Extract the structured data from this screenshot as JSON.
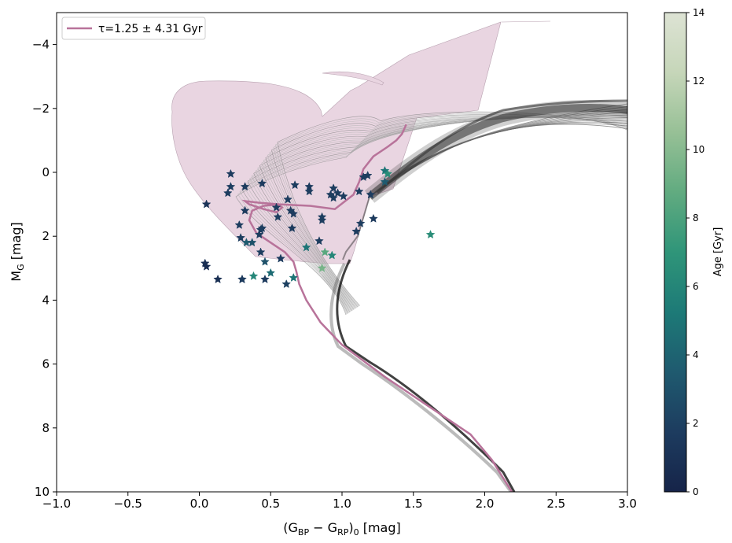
{
  "chart_data": {
    "type": "scatter",
    "xlabel_main": "(G",
    "xlabel_sub1": "BP",
    "xlabel_mid": " − G",
    "xlabel_sub2": "RP",
    "xlabel_close": ")",
    "xlabel_sub3": "0",
    "xlabel_unit": " [mag]",
    "ylabel_main": "M",
    "ylabel_sub": "G",
    "ylabel_unit": " [mag]",
    "xlim": [
      -1.0,
      3.0
    ],
    "ylim": [
      10,
      -5
    ],
    "xticks": [
      -1.0,
      -0.5,
      0.0,
      0.5,
      1.0,
      1.5,
      2.0,
      2.5,
      3.0
    ],
    "xtick_labels": [
      "−1.0",
      "−0.5",
      "0.0",
      "0.5",
      "1.0",
      "1.5",
      "2.0",
      "2.5",
      "3.0"
    ],
    "yticks": [
      -4,
      -2,
      0,
      2,
      4,
      6,
      8,
      10
    ],
    "ytick_labels": [
      "−4",
      "−2",
      "0",
      "2",
      "4",
      "6",
      "8",
      "10"
    ],
    "legend": {
      "location": "upper-left",
      "label": "τ=1.25 ± 4.31 Gyr",
      "color": "#b8739a"
    },
    "colorbar": {
      "label": "Age [Gyr]",
      "range": [
        0,
        14
      ],
      "ticks": [
        0,
        2,
        4,
        6,
        8,
        10,
        12,
        14
      ],
      "tick_labels": [
        "0",
        "2",
        "4",
        "6",
        "8",
        "10",
        "12",
        "14"
      ],
      "colormap": "cubehelix-teal",
      "stops": [
        "#162449",
        "#1d3c5f",
        "#1f5a6f",
        "#1d7a77",
        "#2f9579",
        "#61ab80",
        "#97c096",
        "#c6d6b9",
        "#dde3d4"
      ]
    },
    "best_isochrone": {
      "name": "τ=1.25 ± 4.31 Gyr",
      "color": "#b8739a",
      "x": [
        2.19,
        2.05,
        1.9,
        1.6,
        1.3,
        1.0,
        0.85,
        0.75,
        0.7,
        0.68,
        0.66,
        0.6,
        0.5,
        0.4,
        0.35,
        0.37,
        0.45,
        0.55,
        0.58,
        0.54,
        0.45,
        0.35,
        0.32,
        0.42,
        0.56,
        0.78,
        0.95,
        1.08,
        1.12,
        1.15,
        1.22,
        1.32,
        1.38,
        1.42,
        1.45
      ],
      "y": [
        10.0,
        9.0,
        8.2,
        7.3,
        6.4,
        5.4,
        4.7,
        4.0,
        3.5,
        3.1,
        2.8,
        2.5,
        2.2,
        1.9,
        1.5,
        1.2,
        1.05,
        1.0,
        1.1,
        1.25,
        1.15,
        1.0,
        0.9,
        0.95,
        1.0,
        1.05,
        1.15,
        0.7,
        0.3,
        -0.1,
        -0.5,
        -0.8,
        -1.0,
        -1.2,
        -1.5
      ]
    },
    "stars": {
      "x": [
        0.04,
        0.05,
        0.05,
        0.13,
        0.3,
        0.32,
        0.43,
        0.57,
        0.55,
        0.65,
        0.64,
        0.66,
        0.77,
        0.77,
        0.32,
        0.44,
        0.92,
        0.97,
        1.01,
        1.1,
        1.13,
        1.22,
        1.3,
        1.62,
        0.22,
        0.22,
        0.2,
        0.42,
        0.44,
        0.46,
        0.33,
        0.54,
        0.67,
        0.62,
        0.86,
        0.84,
        0.94,
        0.94,
        0.86,
        0.75,
        0.28,
        0.29,
        0.37,
        0.43,
        0.3,
        0.46,
        0.5,
        0.66,
        0.61,
        0.86,
        0.38,
        0.88,
        0.93,
        1.15,
        1.18,
        1.3,
        1.32,
        1.12,
        1.2
      ],
      "y": [
        2.85,
        2.95,
        1.0,
        3.35,
        3.35,
        1.2,
        1.8,
        2.7,
        1.4,
        1.75,
        1.2,
        1.3,
        0.6,
        0.45,
        0.45,
        0.35,
        0.7,
        0.65,
        0.75,
        1.85,
        1.6,
        1.45,
        0.3,
        1.95,
        0.05,
        0.45,
        0.65,
        1.95,
        1.75,
        2.8,
        2.2,
        1.1,
        0.4,
        0.85,
        1.5,
        2.15,
        0.5,
        0.8,
        3.0,
        2.35,
        1.65,
        2.05,
        2.2,
        2.5,
        3.35,
        3.35,
        3.15,
        3.3,
        3.5,
        1.4,
        3.25,
        2.5,
        2.6,
        0.15,
        0.1,
        -0.05,
        0.05,
        0.6,
        0.7
      ],
      "age": [
        0.8,
        0.6,
        1.2,
        0.8,
        1.0,
        1.6,
        1.8,
        1.6,
        1.8,
        1.6,
        1.8,
        1.7,
        1.8,
        1.6,
        1.7,
        1.7,
        1.8,
        1.8,
        1.8,
        1.7,
        1.8,
        1.6,
        3.5,
        6.5,
        1.7,
        1.8,
        1.8,
        1.8,
        1.8,
        3.0,
        3.5,
        1.8,
        1.8,
        1.8,
        1.8,
        1.8,
        1.8,
        1.8,
        9.5,
        5.0,
        1.8,
        1.8,
        3.0,
        1.8,
        1.6,
        1.6,
        4.5,
        5.0,
        2.0,
        1.8,
        6.0,
        8.5,
        6.0,
        1.8,
        1.8,
        5.0,
        6.5,
        1.8,
        1.8
      ]
    }
  }
}
